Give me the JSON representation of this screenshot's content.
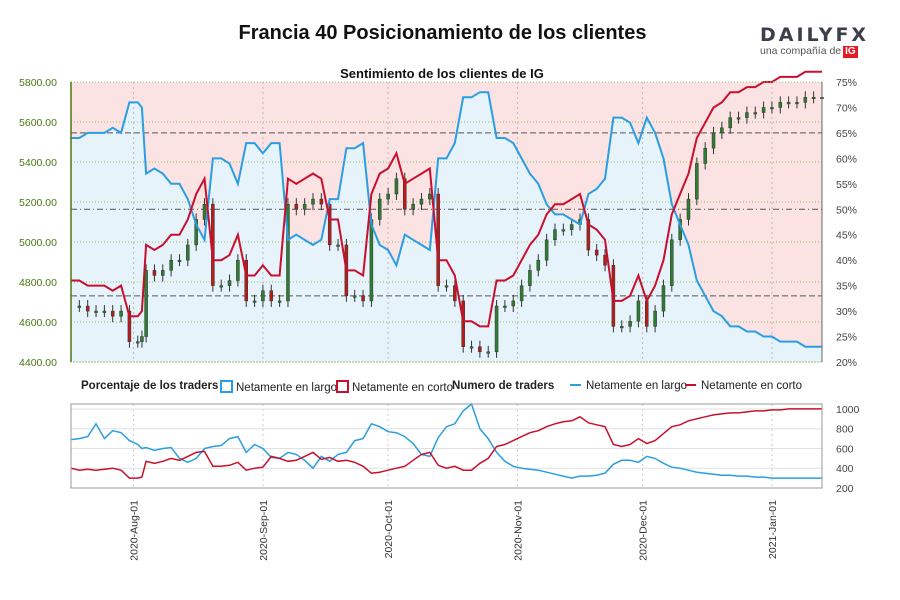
{
  "header": {
    "title": "Francia 40 Posicionamiento de los clientes",
    "logo_text": "DAILYFX",
    "logo_sub": "una compañía de",
    "logo_badge": "IG"
  },
  "colors": {
    "long": "#2a9ee0",
    "short": "#c8102e",
    "long_fill": "#e6f3fb",
    "short_fill": "#fbe3e3",
    "bull_candle": "#2e7d32",
    "bear_candle": "#b71c1c",
    "axis_left": "#4a7a12"
  },
  "legend": {
    "pct_title": "Porcentaje de los traders",
    "net_long": "Netamente en largo",
    "net_short": "Netamente en corto",
    "count_title": "Numero de traders",
    "count_long": "Netamente en largo",
    "count_short": "Netamente en corto"
  },
  "chart_data": [
    {
      "type": "line",
      "title": "Sentimiento de los clientes de IG",
      "note": "Precio (velas) y porcentaje de traders netamente en largo",
      "x_ticks": [
        "2020-Aug-01",
        "2020-Sep-01",
        "2020-Oct-01",
        "2020-Nov-01",
        "2020-Dec-01",
        "2021-Jan-01"
      ],
      "x_range": [
        "2020-07-17",
        "2021-01-16"
      ],
      "y_left_ticks": [
        "5800.00",
        "5600.00",
        "5400.00",
        "5200.00",
        "5000.00",
        "4800.00",
        "4600.00",
        "4400.00"
      ],
      "y_left_range": [
        4400,
        5800
      ],
      "y_right_ticks": [
        "75%",
        "70%",
        "65%",
        "60%",
        "55%",
        "50%",
        "45%",
        "40%",
        "35%",
        "30%",
        "25%",
        "20%"
      ],
      "y_right_range": [
        20,
        75
      ],
      "ref_levels_pct": [
        50,
        65,
        33
      ],
      "series": [
        {
          "name": "Netamente en largo",
          "x": [
            0,
            2,
            4,
            6,
            8,
            10,
            12,
            14,
            16,
            17,
            18,
            20,
            22,
            24,
            26,
            28,
            30,
            32,
            34,
            36,
            38,
            40,
            42,
            44,
            46,
            48,
            50,
            52,
            54,
            56,
            58,
            60,
            62,
            64,
            66,
            68,
            70,
            72,
            74,
            76,
            78,
            80,
            82,
            84,
            86,
            88,
            90,
            92,
            94,
            96,
            98,
            100,
            102,
            104,
            106,
            108,
            110,
            112,
            114,
            116,
            118,
            120,
            122,
            124,
            126,
            128,
            130,
            132,
            134,
            136,
            138,
            140,
            142,
            144,
            146,
            148,
            150,
            152,
            154,
            156,
            158,
            160,
            162,
            164,
            166,
            168,
            170,
            172,
            174,
            176,
            178,
            180
          ],
          "values": [
            64,
            64,
            65,
            65,
            65,
            66,
            65,
            71,
            71,
            70,
            57,
            58,
            57,
            55,
            55,
            52,
            47,
            44,
            60,
            60,
            59,
            55,
            63,
            63,
            61,
            63,
            63,
            44,
            45,
            44,
            43,
            44,
            52,
            52,
            62,
            62,
            63,
            47,
            43,
            42,
            39,
            45,
            44,
            43,
            42,
            60,
            60,
            63,
            72,
            72,
            73,
            73,
            64,
            64,
            63,
            60,
            57,
            55,
            51,
            49,
            49,
            48,
            47,
            53,
            54,
            56,
            68,
            68,
            67,
            63,
            68,
            65,
            60,
            51,
            47,
            43,
            36,
            33,
            30,
            29,
            27,
            27,
            26,
            26,
            25,
            25,
            24,
            24,
            24,
            23,
            23,
            23
          ]
        },
        {
          "name": "Netamente en corto",
          "values_note": "100 minus Netamente en largo"
        }
      ]
    },
    {
      "type": "line",
      "title": "Numero de traders",
      "y_ticks": [
        "1000",
        "800",
        "600",
        "400",
        "200"
      ],
      "y_range": [
        200,
        1050
      ],
      "series": [
        {
          "name": "Netamente en largo",
          "values": [
            690,
            700,
            720,
            850,
            700,
            780,
            760,
            680,
            640,
            600,
            610,
            580,
            600,
            610,
            500,
            460,
            500,
            600,
            620,
            630,
            700,
            720,
            560,
            640,
            600,
            510,
            500,
            560,
            540,
            480,
            400,
            520,
            470,
            540,
            560,
            680,
            700,
            850,
            820,
            770,
            760,
            720,
            650,
            540,
            520,
            710,
            820,
            850,
            980,
            1050,
            800,
            700,
            560,
            470,
            420,
            400,
            390,
            380,
            360,
            340,
            320,
            300,
            320,
            320,
            330,
            350,
            440,
            480,
            480,
            460,
            520,
            500,
            450,
            410,
            400,
            380,
            360,
            350,
            340,
            330,
            330,
            320,
            320,
            310,
            310,
            300,
            300,
            300,
            300,
            300,
            300,
            300
          ]
        },
        {
          "name": "Netamente en corto",
          "values": [
            400,
            380,
            390,
            380,
            390,
            400,
            380,
            300,
            300,
            310,
            470,
            450,
            470,
            500,
            480,
            520,
            560,
            570,
            420,
            420,
            430,
            460,
            380,
            400,
            410,
            520,
            500,
            470,
            480,
            520,
            560,
            490,
            510,
            470,
            480,
            460,
            420,
            350,
            360,
            380,
            400,
            420,
            480,
            540,
            560,
            430,
            400,
            420,
            380,
            380,
            450,
            500,
            620,
            640,
            680,
            720,
            760,
            780,
            820,
            850,
            870,
            880,
            920,
            860,
            840,
            820,
            640,
            620,
            640,
            700,
            650,
            680,
            750,
            820,
            840,
            880,
            900,
            920,
            940,
            950,
            960,
            960,
            970,
            980,
            980,
            990,
            990,
            1000,
            1000,
            1000,
            1000,
            1000
          ]
        }
      ]
    }
  ]
}
